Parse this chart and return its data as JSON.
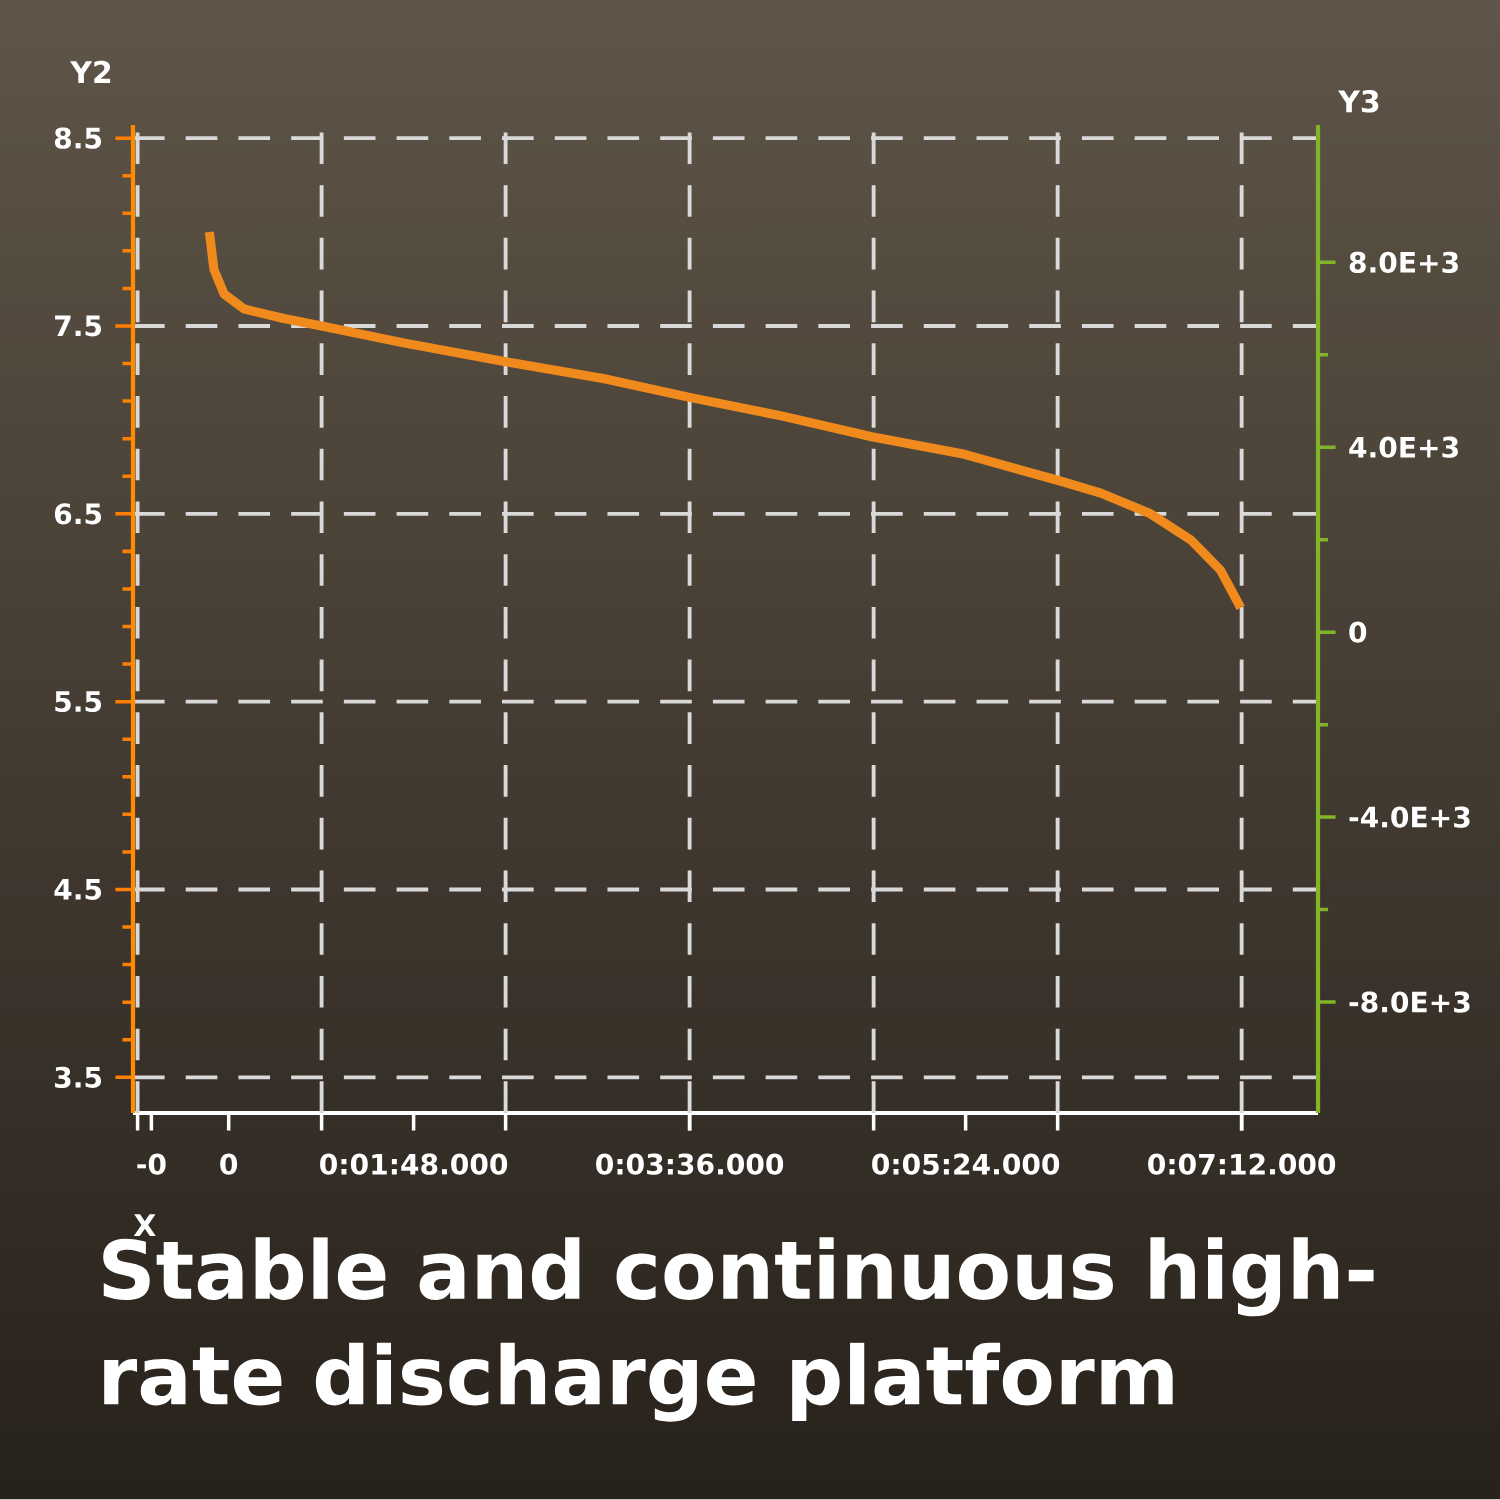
{
  "chart_data": {
    "type": "line",
    "title": "Stable and continuous high-rate discharge platform",
    "xlabel": "X",
    "ylabel": "Y2",
    "y2label": "Y3",
    "x": [
      0.0078,
      0.0083,
      0.0094,
      0.0116,
      0.0159,
      0.02,
      0.0289,
      0.04,
      0.0506,
      0.06,
      0.0701,
      0.0798,
      0.0896,
      0.0999,
      0.1047,
      0.1101,
      0.1145,
      0.1177,
      0.1199
    ],
    "series": [
      {
        "color": "#f08a1c",
        "values": [
          8.0,
          7.8,
          7.67,
          7.59,
          7.54,
          7.5,
          7.41,
          7.31,
          7.22,
          7.12,
          7.02,
          6.91,
          6.82,
          6.68,
          6.61,
          6.5,
          6.36,
          6.2,
          6.0
        ]
      }
    ],
    "xlim": [
      -0.0005,
      0.1283
    ],
    "ylim": [
      3.31,
      8.57
    ],
    "y2lim": [
      -10400,
      10970
    ],
    "xticks": [
      {
        "value": 0.0015,
        "label": "-0"
      },
      {
        "value": 0.0099,
        "label": "0"
      },
      {
        "value": 0.03,
        "label": "0:01:48.000"
      },
      {
        "value": 0.06,
        "label": "0:03:36.000"
      },
      {
        "value": 0.09,
        "label": "0:05:24.000"
      },
      {
        "value": 0.12,
        "label": "0:07:12.000"
      },
      {
        "value": 0,
        "label": null
      },
      {
        "value": 0.02,
        "label": null
      },
      {
        "value": 0.04,
        "label": null
      },
      {
        "value": 0.06,
        "label": null
      },
      {
        "value": 0.08,
        "label": null
      },
      {
        "value": 0.1,
        "label": null
      },
      {
        "value": 0.12,
        "label": null
      }
    ],
    "yticks": [
      3.5,
      4.5,
      5.5,
      6.5,
      7.5,
      8.5
    ],
    "y2ticks": [
      {
        "value": -8000,
        "label": "-8.0E+3"
      },
      {
        "value": -4000,
        "label": "-4.0E+3"
      },
      0,
      {
        "value": 4000,
        "label": "4.0E+3"
      },
      {
        "value": 8000,
        "label": "8.0E+3"
      }
    ],
    "grid": true
  }
}
